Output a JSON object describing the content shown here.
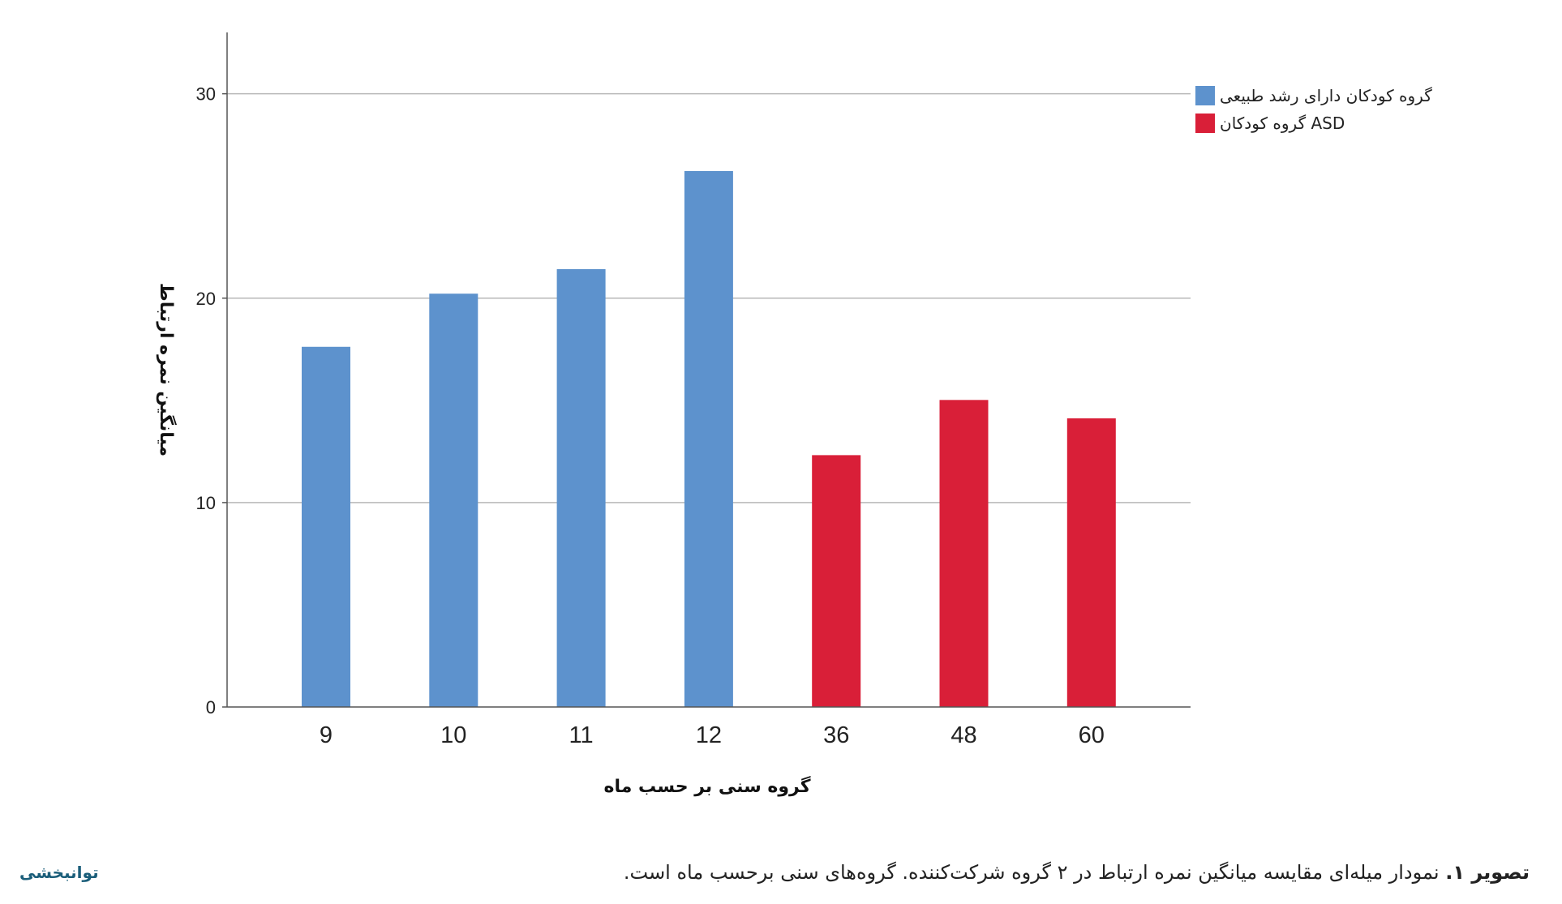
{
  "chart_data": {
    "type": "bar",
    "categories": [
      "9",
      "10",
      "11",
      "12",
      "36",
      "48",
      "60"
    ],
    "series": [
      {
        "name": "گروه کودکان دارای رشد طبیعی",
        "color": "#5d92cd",
        "values": [
          17.6,
          20.2,
          21.4,
          26.2,
          null,
          null,
          null
        ]
      },
      {
        "name": "گروه کودکان ASD",
        "color": "#d91f38",
        "values": [
          null,
          null,
          null,
          null,
          12.3,
          15.0,
          14.1
        ]
      }
    ],
    "xlabel": "گروه سنی بر حسب ماه",
    "ylabel": "میانگین نمره ارتباط",
    "ylim": [
      0,
      33
    ],
    "yticks": [
      0,
      10,
      20,
      30
    ],
    "grid": true,
    "legend": "top-right"
  },
  "caption": {
    "label": "تصویر ۱.",
    "text": " نمودار میله‌ای مقایسه میانگین نمره ارتباط در ۲ گروه شرکت‌کننده. گروه‌های سنی برحسب ماه است."
  },
  "logo_text": "توانبخشی"
}
